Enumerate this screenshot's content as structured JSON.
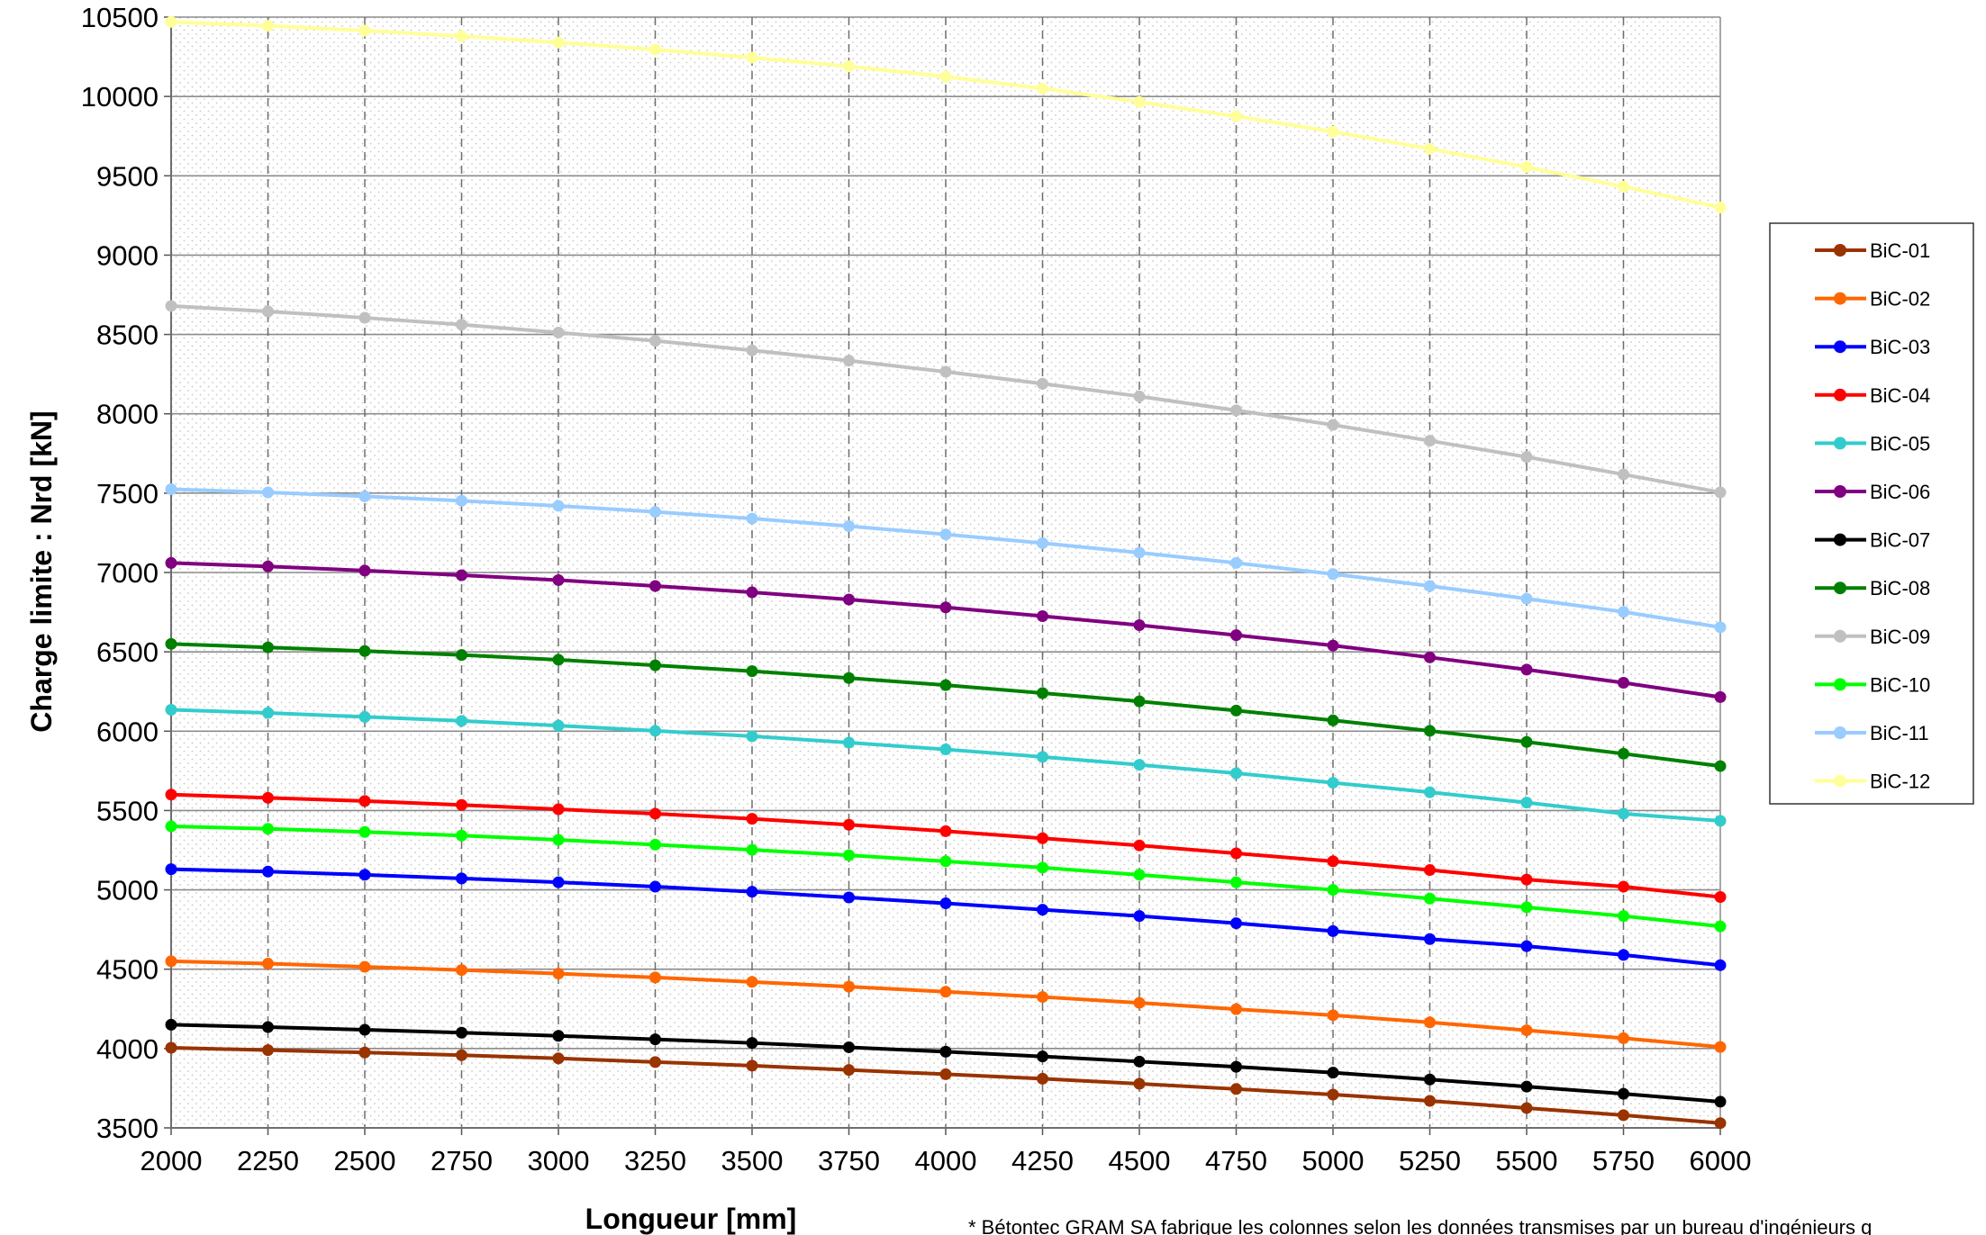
{
  "chart_data": {
    "type": "line",
    "xlabel": "Longueur [mm]",
    "ylabel": "Charge limite : Nrd [kN]",
    "x": [
      2000,
      2250,
      2500,
      2750,
      3000,
      3250,
      3500,
      3750,
      4000,
      4250,
      4500,
      4750,
      5000,
      5250,
      5500,
      5750,
      6000
    ],
    "xlim": [
      2000,
      6000
    ],
    "ylim": [
      3500,
      10500
    ],
    "xticks": [
      "2000",
      "2250",
      "2500",
      "2750",
      "3000",
      "3250",
      "3500",
      "3750",
      "4000",
      "4250",
      "4500",
      "4750",
      "5000",
      "5250",
      "5500",
      "5750",
      "6000"
    ],
    "yticks": [
      "3500",
      "4000",
      "4500",
      "5000",
      "5500",
      "6000",
      "6500",
      "7000",
      "7500",
      "8000",
      "8500",
      "9000",
      "9500",
      "10000",
      "10500"
    ],
    "grid": "horizontal solid, vertical dashed",
    "legend_position": "right",
    "footnote": "* Bétontec GRAM SA fabrique les colonnes selon les données transmises par un bureau d'ingénieurs q",
    "series": [
      {
        "name": "BiC-01",
        "color": "#993300",
        "values": [
          4005,
          3990,
          3975,
          3958,
          3938,
          3915,
          3892,
          3865,
          3838,
          3810,
          3778,
          3745,
          3710,
          3670,
          3625,
          3580,
          3530
        ]
      },
      {
        "name": "BiC-02",
        "color": "#ff6600",
        "values": [
          4550,
          4535,
          4515,
          4495,
          4472,
          4448,
          4420,
          4390,
          4358,
          4325,
          4288,
          4248,
          4210,
          4165,
          4115,
          4065,
          4010
        ]
      },
      {
        "name": "BiC-03",
        "color": "#0000ff",
        "values": [
          5130,
          5115,
          5095,
          5072,
          5048,
          5020,
          4988,
          4952,
          4915,
          4875,
          4835,
          4790,
          4740,
          4690,
          4645,
          4590,
          4525
        ]
      },
      {
        "name": "BiC-04",
        "color": "#ff0000",
        "values": [
          5600,
          5580,
          5560,
          5535,
          5508,
          5480,
          5448,
          5410,
          5370,
          5325,
          5280,
          5230,
          5180,
          5125,
          5065,
          5020,
          4955
        ]
      },
      {
        "name": "BiC-05",
        "color": "#33cccc",
        "values": [
          6135,
          6115,
          6090,
          6065,
          6035,
          6002,
          5968,
          5928,
          5885,
          5838,
          5788,
          5735,
          5675,
          5615,
          5550,
          5480,
          5435
        ]
      },
      {
        "name": "BiC-06",
        "color": "#800080",
        "values": [
          7060,
          7038,
          7012,
          6983,
          6952,
          6915,
          6875,
          6830,
          6780,
          6725,
          6668,
          6605,
          6540,
          6465,
          6388,
          6305,
          6215
        ]
      },
      {
        "name": "BiC-07",
        "color": "#000000",
        "values": [
          4150,
          4135,
          4118,
          4100,
          4080,
          4058,
          4035,
          4008,
          3980,
          3950,
          3918,
          3885,
          3848,
          3805,
          3760,
          3715,
          3665
        ]
      },
      {
        "name": "BiC-08",
        "color": "#008000",
        "values": [
          6550,
          6528,
          6505,
          6480,
          6450,
          6415,
          6378,
          6335,
          6290,
          6240,
          6188,
          6130,
          6068,
          6002,
          5932,
          5858,
          5780
        ]
      },
      {
        "name": "BiC-09",
        "color": "#c0c0c0",
        "values": [
          8680,
          8645,
          8605,
          8562,
          8512,
          8460,
          8400,
          8335,
          8265,
          8190,
          8110,
          8022,
          7930,
          7830,
          7728,
          7618,
          7505
        ]
      },
      {
        "name": "BiC-10",
        "color": "#00ff00",
        "values": [
          5400,
          5385,
          5365,
          5342,
          5315,
          5285,
          5252,
          5218,
          5180,
          5140,
          5095,
          5048,
          5000,
          4945,
          4890,
          4835,
          4770
        ]
      },
      {
        "name": "BiC-11",
        "color": "#99ccff",
        "values": [
          7525,
          7505,
          7480,
          7452,
          7420,
          7382,
          7340,
          7292,
          7240,
          7185,
          7125,
          7060,
          6990,
          6915,
          6835,
          6752,
          6655
        ]
      },
      {
        "name": "BiC-12",
        "color": "#ffff99",
        "values": [
          10470,
          10445,
          10415,
          10380,
          10340,
          10295,
          10245,
          10190,
          10125,
          10050,
          9965,
          9875,
          9778,
          9670,
          9555,
          9432,
          9300
        ]
      }
    ]
  }
}
